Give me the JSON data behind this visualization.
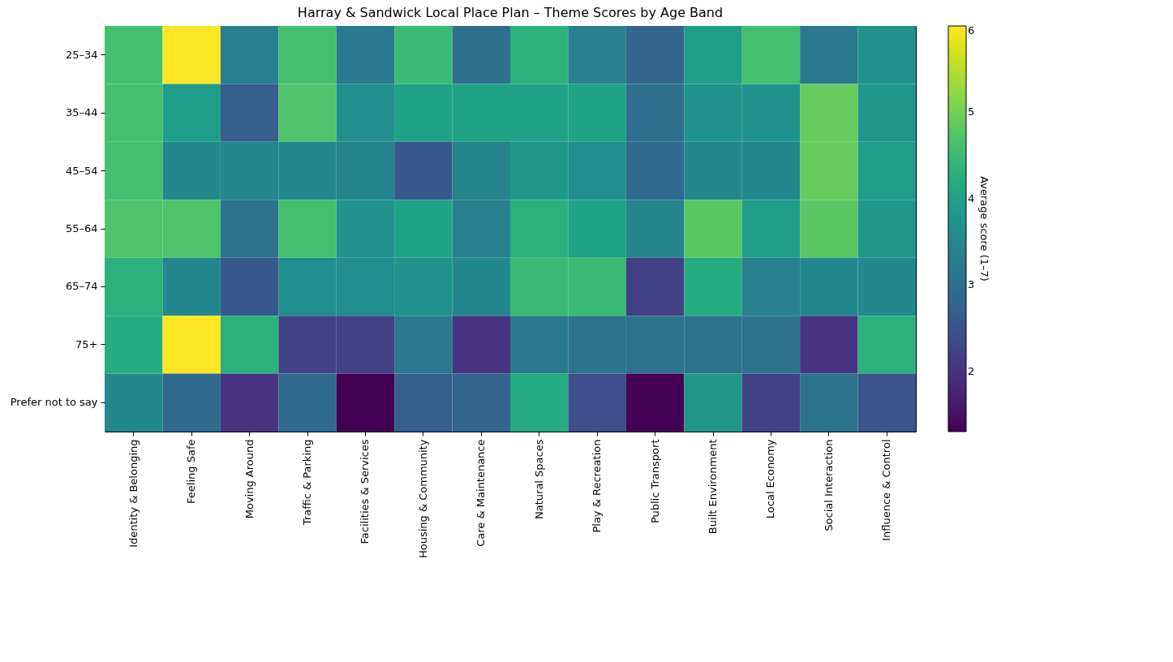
{
  "chart_data": {
    "type": "heatmap",
    "title": "Harray & Sandwick Local Place Plan – Theme Scores by Age Band",
    "categories": [
      "Identity & Belonging",
      "Feeling Safe",
      "Moving Around",
      "Traffic & Parking",
      "Facilities & Services",
      "Housing & Community",
      "Care & Maintenance",
      "Natural Spaces",
      "Play & Recreation",
      "Public Transport",
      "Built Environment",
      "Local Economy",
      "Social Interaction",
      "Influence & Control"
    ],
    "y_categories": [
      "25–34",
      "35–44",
      "45–54",
      "55–64",
      "65–74",
      "75+",
      "Prefer not to say"
    ],
    "cells": [
      [
        4.6,
        6.0,
        3.3,
        4.6,
        3.2,
        4.5,
        3.0,
        4.3,
        3.3,
        2.8,
        3.9,
        4.6,
        3.2,
        3.7
      ],
      [
        4.6,
        3.9,
        2.7,
        4.7,
        3.6,
        4.0,
        4.0,
        4.0,
        4.0,
        3.0,
        3.7,
        3.7,
        4.9,
        3.8
      ],
      [
        4.6,
        3.5,
        3.5,
        3.5,
        3.4,
        2.6,
        3.4,
        3.8,
        3.6,
        2.9,
        3.5,
        3.5,
        4.9,
        3.9
      ],
      [
        4.7,
        4.7,
        3.1,
        4.6,
        3.7,
        4.0,
        3.3,
        4.3,
        4.0,
        3.4,
        4.8,
        3.9,
        4.8,
        3.8
      ],
      [
        4.3,
        3.5,
        2.6,
        3.6,
        3.6,
        3.7,
        3.5,
        4.5,
        4.5,
        2.2,
        4.2,
        3.3,
        3.5,
        3.5
      ],
      [
        4.2,
        6.0,
        4.3,
        2.2,
        2.2,
        3.2,
        2.0,
        3.2,
        3.1,
        3.1,
        3.1,
        3.1,
        2.0,
        4.3
      ],
      [
        3.5,
        2.9,
        2.0,
        2.9,
        1.3,
        2.7,
        2.8,
        4.2,
        2.4,
        1.3,
        3.8,
        2.2,
        3.1,
        2.5
      ]
    ],
    "clabel": "Average score (1–7)",
    "clim": [
      1.3,
      6
    ],
    "cticks": [
      2,
      3,
      4,
      5,
      6
    ]
  }
}
